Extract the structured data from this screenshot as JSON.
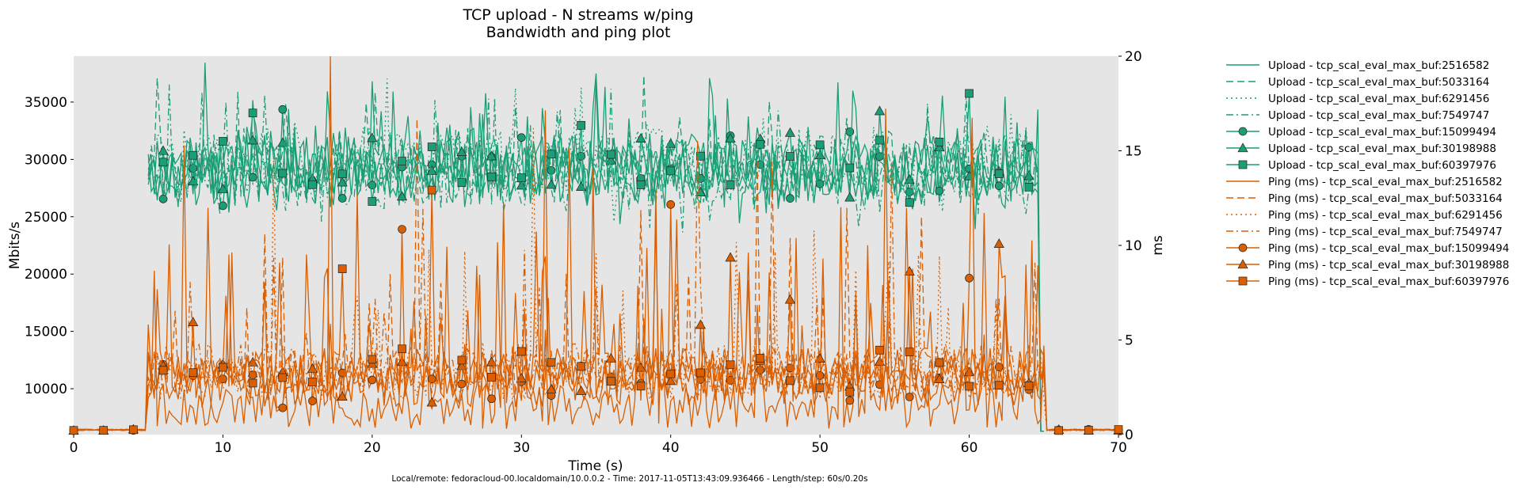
{
  "chart_data": {
    "type": "line",
    "title": "TCP upload - N streams w/ping",
    "subtitle": "Bandwidth and ping plot",
    "xlabel": "Time (s)",
    "ylabel": "Mbits/s",
    "y2label": "ms",
    "xlim": [
      0,
      70
    ],
    "ylim": [
      6000,
      39000
    ],
    "y2lim": [
      0,
      20
    ],
    "x_ticks": [
      "0",
      "10",
      "20",
      "30",
      "40",
      "50",
      "60",
      "70"
    ],
    "y_ticks": [
      "10000",
      "15000",
      "20000",
      "25000",
      "30000",
      "35000"
    ],
    "y2_ticks": [
      "0",
      "5",
      "10",
      "15",
      "20"
    ],
    "grid": false,
    "legend_position": "outside-right",
    "footer": "Local/remote: fedoracloud-00.localdomain/10.0.0.2 - Time: 2017-11-05T13:43:09.936466 - Length/step: 60s/0.20s",
    "colors": {
      "upload": "#1b9e77",
      "ping": "#d95f02",
      "plot_background": "#e5e5e5"
    },
    "test_window": {
      "start": 5,
      "end": 65
    },
    "upload_typical_range_mbits": [
      26000,
      33000
    ],
    "ping_idle_ms": 0.25,
    "ping_typical_range_ms": [
      1,
      5
    ],
    "series": [
      {
        "name": "Upload - tcp_scal_eval_max_buf:2516582",
        "metric": "upload",
        "axis": "left",
        "linestyle": "solid",
        "marker": "none",
        "base": 29000
      },
      {
        "name": "Upload - tcp_scal_eval_max_buf:5033164",
        "metric": "upload",
        "axis": "left",
        "linestyle": "dashed",
        "marker": "none",
        "base": 29500
      },
      {
        "name": "Upload - tcp_scal_eval_max_buf:6291456",
        "metric": "upload",
        "axis": "left",
        "linestyle": "dotted",
        "marker": "none",
        "base": 30000
      },
      {
        "name": "Upload - tcp_scal_eval_max_buf:7549747",
        "metric": "upload",
        "axis": "left",
        "linestyle": "dashdot",
        "marker": "none",
        "base": 28500
      },
      {
        "name": "Upload - tcp_scal_eval_max_buf:15099494",
        "metric": "upload",
        "axis": "left",
        "linestyle": "solid",
        "marker": "circle",
        "base": 28800
      },
      {
        "name": "Upload - tcp_scal_eval_max_buf:30198988",
        "metric": "upload",
        "axis": "left",
        "linestyle": "solid",
        "marker": "triangle",
        "base": 29200
      },
      {
        "name": "Upload - tcp_scal_eval_max_buf:60397976",
        "metric": "upload",
        "axis": "left",
        "linestyle": "solid",
        "marker": "square",
        "base": 29600
      },
      {
        "name": "Ping (ms) - tcp_scal_eval_max_buf:2516582",
        "metric": "ping",
        "axis": "right",
        "linestyle": "solid",
        "marker": "none",
        "base": 1.5
      },
      {
        "name": "Ping (ms) - tcp_scal_eval_max_buf:5033164",
        "metric": "ping",
        "axis": "right",
        "linestyle": "dashed",
        "marker": "none",
        "base": 3.3
      },
      {
        "name": "Ping (ms) - tcp_scal_eval_max_buf:6291456",
        "metric": "ping",
        "axis": "right",
        "linestyle": "dotted",
        "marker": "none",
        "base": 3.0
      },
      {
        "name": "Ping (ms) - tcp_scal_eval_max_buf:7549747",
        "metric": "ping",
        "axis": "right",
        "linestyle": "dashdot",
        "marker": "none",
        "base": 3.6
      },
      {
        "name": "Ping (ms) - tcp_scal_eval_max_buf:15099494",
        "metric": "ping",
        "axis": "right",
        "linestyle": "solid",
        "marker": "circle",
        "base": 2.6
      },
      {
        "name": "Ping (ms) - tcp_scal_eval_max_buf:30198988",
        "metric": "ping",
        "axis": "right",
        "linestyle": "solid",
        "marker": "triangle",
        "base": 2.9
      },
      {
        "name": "Ping (ms) - tcp_scal_eval_max_buf:60397976",
        "metric": "ping",
        "axis": "right",
        "linestyle": "solid",
        "marker": "square",
        "base": 3.4
      }
    ]
  }
}
